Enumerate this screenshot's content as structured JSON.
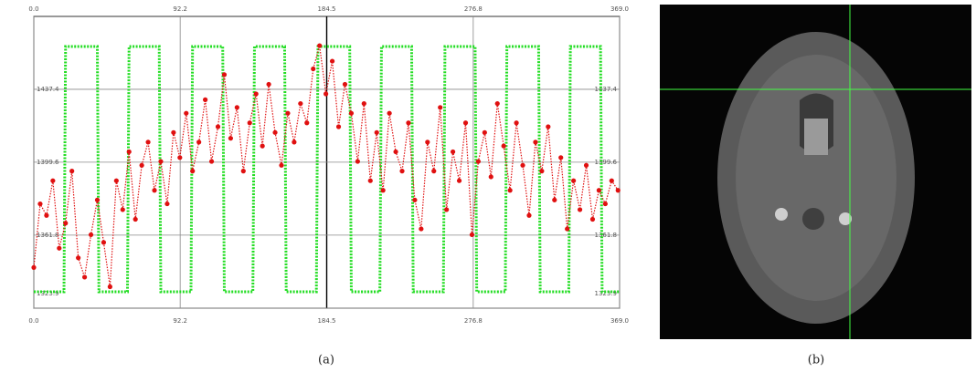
{
  "chart_data": {
    "type": "line",
    "xlim": [
      0,
      369
    ],
    "ylim": [
      1323.9,
      1475.2
    ],
    "xticks": [
      {
        "value": 0,
        "label": "0.0"
      },
      92.2,
      184.5,
      276.8,
      {
        "value": 369,
        "label": "369.0"
      }
    ],
    "yticks": [
      1323.9,
      1361.8,
      1399.6,
      1437.4
    ],
    "grid": true,
    "series": [
      {
        "color": "#22dd22",
        "x": [
          0,
          19,
          20,
          40,
          41,
          59,
          60,
          79,
          80,
          99,
          100,
          119,
          120,
          138,
          139,
          158,
          159,
          178,
          179,
          199,
          200,
          218,
          219,
          238,
          239,
          258,
          259,
          278,
          279,
          297,
          298,
          318,
          319,
          337,
          338,
          357,
          358,
          369
        ],
        "values": [
          1332.4,
          1332.4,
          1459.6,
          1459.6,
          1332.4,
          1332.4,
          1459.6,
          1459.6,
          1332.4,
          1332.4,
          1459.6,
          1459.6,
          1332.4,
          1332.4,
          1459.6,
          1459.6,
          1332.4,
          1332.4,
          1459.6,
          1459.6,
          1332.4,
          1332.4,
          1459.6,
          1459.6,
          1332.4,
          1332.4,
          1459.6,
          1459.6,
          1332.4,
          1332.4,
          1459.6,
          1459.6,
          1332.4,
          1332.4,
          1459.6,
          1459.6,
          1332.4,
          1332.4
        ]
      },
      {
        "color": "#e01010",
        "x": [
          0,
          4,
          8,
          12,
          16,
          20,
          24,
          28,
          32,
          36,
          40,
          44,
          48,
          52,
          56,
          60,
          64,
          68,
          72,
          76,
          80,
          84,
          88,
          92,
          96,
          100,
          104,
          108,
          112,
          116,
          120,
          124,
          128,
          132,
          136,
          140,
          144,
          148,
          152,
          156,
          160,
          164,
          168,
          172,
          176,
          180,
          184,
          188,
          192,
          196,
          200,
          204,
          208,
          212,
          216,
          220,
          224,
          228,
          232,
          236,
          240,
          244,
          248,
          252,
          256,
          260,
          264,
          268,
          272,
          276,
          280,
          284,
          288,
          292,
          296,
          300,
          304,
          308,
          312,
          316,
          320,
          324,
          328,
          332,
          336,
          340,
          344,
          348,
          352,
          356,
          360,
          364,
          368
        ],
        "values": [
          1345,
          1378,
          1372,
          1390,
          1355,
          1368,
          1395,
          1350,
          1340,
          1362,
          1380,
          1358,
          1335,
          1390,
          1375,
          1405,
          1370,
          1398,
          1410,
          1385,
          1400,
          1378,
          1415,
          1402,
          1425,
          1395,
          1410,
          1432,
          1400,
          1418,
          1445,
          1412,
          1428,
          1395,
          1420,
          1435,
          1408,
          1440,
          1415,
          1398,
          1425,
          1410,
          1430,
          1420,
          1448,
          1460,
          1435,
          1452,
          1418,
          1440,
          1425,
          1400,
          1430,
          1390,
          1415,
          1385,
          1425,
          1405,
          1395,
          1420,
          1380,
          1365,
          1410,
          1395,
          1428,
          1375,
          1405,
          1390,
          1420,
          1362,
          1400,
          1415,
          1392,
          1430,
          1408,
          1385,
          1420,
          1398,
          1372,
          1410,
          1395,
          1418,
          1380,
          1402,
          1365,
          1390,
          1375,
          1398,
          1370,
          1385,
          1378,
          1390,
          1385
        ]
      }
    ]
  },
  "captions": [
    "(a)",
    "(b)"
  ]
}
